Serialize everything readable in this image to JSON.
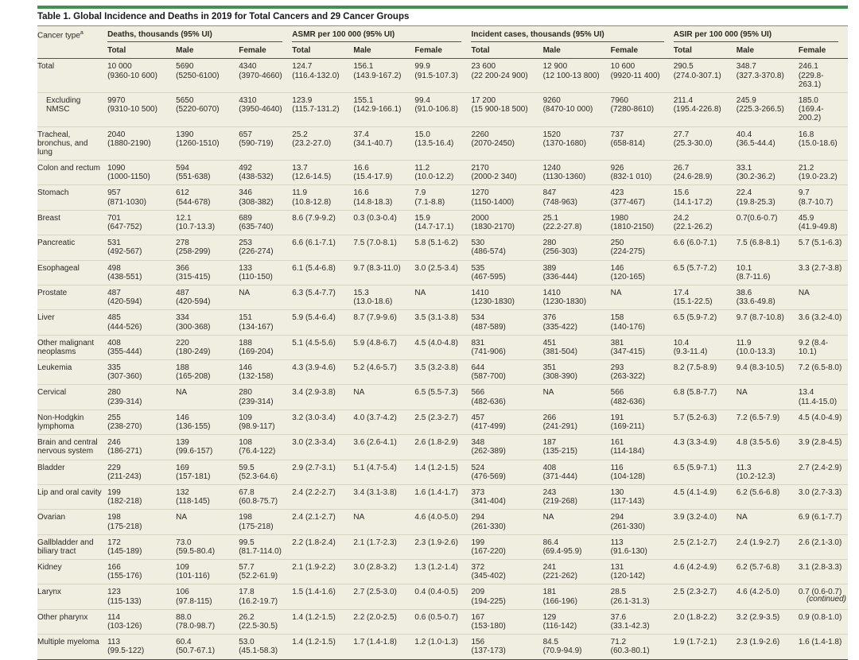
{
  "table": {
    "title": "Table 1. Global Incidence and Deaths in 2019 for Total Cancers and 29 Cancer Groups",
    "continued_note": "(continued)",
    "row_header": {
      "label": "Cancer type",
      "footnote_marker": "a"
    },
    "column_groups": [
      {
        "label": "Deaths, thousands (95% UI)",
        "columns": [
          "Total",
          "Male",
          "Female"
        ]
      },
      {
        "label": "ASMR per 100 000 (95% UI)",
        "columns": [
          "Total",
          "Male",
          "Female"
        ]
      },
      {
        "label": "Incident cases, thousands (95% UI)",
        "columns": [
          "Total",
          "Male",
          "Female"
        ]
      },
      {
        "label": "ASIR per 100 000 (95% UI)",
        "columns": [
          "Total",
          "Male",
          "Female"
        ]
      }
    ],
    "rows": [
      {
        "label": "Total",
        "indent": false,
        "cells": [
          "10 000\n(9360-10 600)",
          "5690\n(5250-6100)",
          "4340\n(3970-4660)",
          "124.7\n(116.4-132.0)",
          "156.1\n(143.9-167.2)",
          "99.9\n(91.5-107.3)",
          "23 600\n(22 200-24 900)",
          "12 900\n(12 100-13 800)",
          "10 600\n(9920-11 400)",
          "290.5\n(274.0-307.1)",
          "348.7\n(327.3-370.8)",
          "246.1\n(229.8-263.1)"
        ]
      },
      {
        "label": "Excluding NMSC",
        "indent": true,
        "cells": [
          "9970\n(9310-10 500)",
          "5650\n(5220-6070)",
          "4310\n(3950-4640)",
          "123.9\n(115.7-131.2)",
          "155.1\n(142.9-166.1)",
          "99.4\n(91.0-106.8)",
          "17 200\n(15 900-18 500)",
          "9260\n(8470-10 000)",
          "7960\n(7280-8610)",
          "211.4\n(195.4-226.8)",
          "245.9\n(225.3-266.5)",
          "185.0\n(169.4-200.2)"
        ]
      },
      {
        "label": "Tracheal, bronchus, and lung",
        "indent": false,
        "cells": [
          "2040\n(1880-2190)",
          "1390\n(1260-1510)",
          "657\n(590-719)",
          "25.2\n(23.2-27.0)",
          "37.4\n(34.1-40.7)",
          "15.0\n(13.5-16.4)",
          "2260\n(2070-2450)",
          "1520\n(1370-1680)",
          "737\n(658-814)",
          "27.7\n(25.3-30.0)",
          "40.4\n(36.5-44.4)",
          "16.8\n(15.0-18.6)"
        ]
      },
      {
        "label": "Colon and rectum",
        "indent": false,
        "cells": [
          "1090\n(1000-1150)",
          "594\n(551-638)",
          "492\n(438-532)",
          "13.7\n(12.6-14.5)",
          "16.6\n(15.4-17.9)",
          "11.2\n(10.0-12.2)",
          "2170\n(2000-2 340)",
          "1240\n(1130-1360)",
          "926\n(832-1 010)",
          "26.7\n(24.6-28.9)",
          "33.1\n(30.2-36.2)",
          "21.2\n(19.0-23.2)"
        ]
      },
      {
        "label": "Stomach",
        "indent": false,
        "cells": [
          "957\n(871-1030)",
          "612\n(544-678)",
          "346\n(308-382)",
          "11.9\n(10.8-12.8)",
          "16.6\n(14.8-18.3)",
          "7.9\n(7.1-8.8)",
          "1270\n(1150-1400)",
          "847\n(748-963)",
          "423\n(377-467)",
          "15.6\n(14.1-17.2)",
          "22.4\n(19.8-25.3)",
          "9.7\n(8.7-10.7)"
        ]
      },
      {
        "label": "Breast",
        "indent": false,
        "cells": [
          "701\n(647-752)",
          "12.1\n(10.7-13.3)",
          "689\n(635-740)",
          "8.6 (7.9-9.2)",
          "0.3 (0.3-0.4)",
          "15.9\n(14.7-17.1)",
          "2000\n(1830-2170)",
          "25.1\n(22.2-27.8)",
          "1980\n(1810-2150)",
          "24.2\n(22.1-26.2)",
          "0.7(0.6-0.7)",
          "45.9\n(41.9-49.8)"
        ]
      },
      {
        "label": "Pancreatic",
        "indent": false,
        "cells": [
          "531\n(492-567)",
          "278\n(258-299)",
          "253\n(226-274)",
          "6.6 (6.1-7.1)",
          "7.5 (7.0-8.1)",
          "5.8 (5.1-6.2)",
          "530\n(486-574)",
          "280\n(256-303)",
          "250\n(224-275)",
          "6.6 (6.0-7.1)",
          "7.5 (6.8-8.1)",
          "5.7 (5.1-6.3)"
        ]
      },
      {
        "label": "Esophageal",
        "indent": false,
        "cells": [
          "498\n(438-551)",
          "366\n(315-415)",
          "133\n(110-150)",
          "6.1 (5.4-6.8)",
          "9.7 (8.3-11.0)",
          "3.0 (2.5-3.4)",
          "535\n(467-595)",
          "389\n(336-444)",
          "146\n(120-165)",
          "6.5 (5.7-7.2)",
          "10.1\n(8.7-11.6)",
          "3.3 (2.7-3.8)"
        ]
      },
      {
        "label": "Prostate",
        "indent": false,
        "cells": [
          "487\n(420-594)",
          "487\n(420-594)",
          "NA",
          "6.3 (5.4-7.7)",
          "15.3\n(13.0-18.6)",
          "NA",
          "1410\n(1230-1830)",
          "1410\n(1230-1830)",
          "NA",
          "17.4\n(15.1-22.5)",
          "38.6\n(33.6-49.8)",
          "NA"
        ]
      },
      {
        "label": "Liver",
        "indent": false,
        "cells": [
          "485\n(444-526)",
          "334\n(300-368)",
          "151\n(134-167)",
          "5.9 (5.4-6.4)",
          "8.7 (7.9-9.6)",
          "3.5 (3.1-3.8)",
          "534\n(487-589)",
          "376\n(335-422)",
          "158\n(140-176)",
          "6.5 (5.9-7.2)",
          "9.7 (8.7-10.8)",
          "3.6 (3.2-4.0)"
        ]
      },
      {
        "label": "Other malignant neoplasms",
        "indent": false,
        "cells": [
          "408\n(355-444)",
          "220\n(180-249)",
          "188\n(169-204)",
          "5.1 (4.5-5.6)",
          "5.9 (4.8-6.7)",
          "4.5 (4.0-4.8)",
          "831\n(741-906)",
          "451\n(381-504)",
          "381\n(347-415)",
          "10.4\n(9.3-11.4)",
          "11.9\n(10.0-13.3)",
          "9.2 (8.4-10.1)"
        ]
      },
      {
        "label": "Leukemia",
        "indent": false,
        "cells": [
          "335\n(307-360)",
          "188\n(165-208)",
          "146\n(132-158)",
          "4.3 (3.9-4.6)",
          "5.2 (4.6-5.7)",
          "3.5 (3.2-3.8)",
          "644\n(587-700)",
          "351\n(308-390)",
          "293\n(263-322)",
          "8.2 (7.5-8.9)",
          "9.4 (8.3-10.5)",
          "7.2 (6.5-8.0)"
        ]
      },
      {
        "label": "Cervical",
        "indent": false,
        "cells": [
          "280\n(239-314)",
          "NA",
          "280\n(239-314)",
          "3.4 (2.9-3.8)",
          "NA",
          "6.5 (5.5-7.3)",
          "566\n(482-636)",
          "NA",
          "566\n(482-636)",
          "6.8 (5.8-7.7)",
          "NA",
          "13.4\n(11.4-15.0)"
        ]
      },
      {
        "label": "Non-Hodgkin lymphoma",
        "indent": false,
        "cells": [
          "255\n(238-270)",
          "146\n(136-155)",
          "109\n(98.9-117)",
          "3.2 (3.0-3.4)",
          "4.0 (3.7-4.2)",
          "2.5 (2.3-2.7)",
          "457\n(417-499)",
          "266\n(241-291)",
          "191\n(169-211)",
          "5.7 (5.2-6.3)",
          "7.2 (6.5-7.9)",
          "4.5 (4.0-4.9)"
        ]
      },
      {
        "label": "Brain and central nervous system",
        "indent": false,
        "cells": [
          "246\n(186-271)",
          "139\n(99.6-157)",
          "108\n(76.4-122)",
          "3.0 (2.3-3.4)",
          "3.6 (2.6-4.1)",
          "2.6 (1.8-2.9)",
          "348\n(262-389)",
          "187\n(135-215)",
          "161\n(114-184)",
          "4.3 (3.3-4.9)",
          "4.8 (3.5-5.6)",
          "3.9 (2.8-4.5)"
        ]
      },
      {
        "label": "Bladder",
        "indent": false,
        "cells": [
          "229\n(211-243)",
          "169\n(157-181)",
          "59.5\n(52.3-64.6)",
          "2.9 (2.7-3.1)",
          "5.1 (4.7-5.4)",
          "1.4 (1.2-1.5)",
          "524\n(476-569)",
          "408\n(371-444)",
          "116\n(104-128)",
          "6.5 (5.9-7.1)",
          "11.3\n(10.2-12.3)",
          "2.7 (2.4-2.9)"
        ]
      },
      {
        "label": "Lip and oral cavity",
        "indent": false,
        "cells": [
          "199\n(182-218)",
          "132\n(118-145)",
          "67.8\n(60.8-75.7)",
          "2.4 (2.2-2.7)",
          "3.4 (3.1-3.8)",
          "1.6 (1.4-1.7)",
          "373\n(341-404)",
          "243\n(219-268)",
          "130\n(117-143)",
          "4.5 (4.1-4.9)",
          "6.2 (5.6-6.8)",
          "3.0 (2.7-3.3)"
        ]
      },
      {
        "label": "Ovarian",
        "indent": false,
        "cells": [
          "198\n(175-218)",
          "NA",
          "198\n(175-218)",
          "2.4 (2.1-2.7)",
          "NA",
          "4.6 (4.0-5.0)",
          "294\n(261-330)",
          "NA",
          "294\n(261-330)",
          "3.9 (3.2-4.0)",
          "NA",
          "6.9 (6.1-7.7)"
        ]
      },
      {
        "label": "Gallbladder and biliary tract",
        "indent": false,
        "cells": [
          "172\n(145-189)",
          "73.0\n(59.5-80.4)",
          "99.5\n(81.7-114.0)",
          "2.2 (1.8-2.4)",
          "2.1 (1.7-2.3)",
          "2.3 (1.9-2.6)",
          "199\n(167-220)",
          "86.4\n(69.4-95.9)",
          "113\n(91.6-130)",
          "2.5 (2.1-2.7)",
          "2.4 (1.9-2.7)",
          "2.6 (2.1-3.0)"
        ]
      },
      {
        "label": "Kidney",
        "indent": false,
        "cells": [
          "166\n(155-176)",
          "109\n(101-116)",
          "57.7\n(52.2-61.9)",
          "2.1 (1.9-2.2)",
          "3.0 (2.8-3.2)",
          "1.3 (1.2-1.4)",
          "372\n(345-402)",
          "241\n(221-262)",
          "131\n(120-142)",
          "4.6 (4.2-4.9)",
          "6.2 (5.7-6.8)",
          "3.1 (2.8-3.3)"
        ]
      },
      {
        "label": "Larynx",
        "indent": false,
        "cells": [
          "123\n(115-133)",
          "106\n(97.8-115)",
          "17.8\n(16.2-19.7)",
          "1.5 (1.4-1.6)",
          "2.7 (2.5-3.0)",
          "0.4 (0.4-0.5)",
          "209\n(194-225)",
          "181\n(166-196)",
          "28.5\n(26.1-31.3)",
          "2.5 (2.3-2.7)",
          "4.6 (4.2-5.0)",
          "0.7 (0.6-0.7)"
        ]
      },
      {
        "label": "Other pharynx",
        "indent": false,
        "cells": [
          "114\n(103-126)",
          "88.0\n(78.0-98.7)",
          "26.2\n(22.5-30.5)",
          "1.4 (1.2-1.5)",
          "2.2 (2.0-2.5)",
          "0.6 (0.5-0.7)",
          "167\n(153-180)",
          "129\n(116-142)",
          "37.6\n(33.1-42.3)",
          "2.0 (1.8-2.2)",
          "3.2 (2.9-3.5)",
          "0.9 (0.8-1.0)"
        ]
      },
      {
        "label": "Multiple myeloma",
        "indent": false,
        "cells": [
          "113\n(99.5-122)",
          "60.4\n(50.7-67.1)",
          "53.0\n(45.1-58.3)",
          "1.4 (1.2-1.5)",
          "1.7 (1.4-1.8)",
          "1.2 (1.0-1.3)",
          "156\n(137-173)",
          "84.5\n(70.9-94.9)",
          "71.2\n(60.3-80.1)",
          "1.9 (1.7-2.1)",
          "2.3 (1.9-2.6)",
          "1.6 (1.4-1.8)"
        ]
      }
    ],
    "colors": {
      "accent_bar": "#42914e",
      "table_bg": "#f0eee1",
      "rule_dark": "#55514a",
      "rule_light": "#d7d3c3",
      "text": "#2b2723"
    }
  }
}
